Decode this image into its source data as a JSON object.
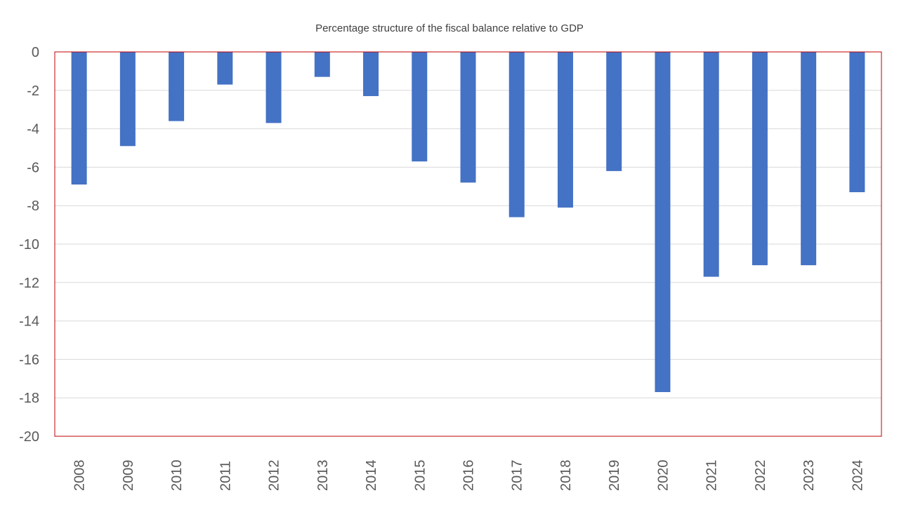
{
  "chart_data": {
    "type": "bar",
    "title": "Percentage structure of the fiscal balance relative to GDP",
    "xlabel": "",
    "ylabel": "",
    "categories": [
      "2008",
      "2009",
      "2010",
      "2011",
      "2012",
      "2013",
      "2014",
      "2015",
      "2016",
      "2017",
      "2018",
      "2019",
      "2020",
      "2021",
      "2022",
      "2023",
      "2024"
    ],
    "values": [
      -6.9,
      -4.9,
      -3.6,
      -1.7,
      -3.7,
      -1.3,
      -2.3,
      -5.7,
      -6.8,
      -8.6,
      -8.1,
      -6.2,
      -17.7,
      -11.7,
      -11.1,
      -11.1,
      -7.3
    ],
    "ylim": [
      -20,
      0
    ],
    "yticks": [
      "0",
      "-2",
      "-4",
      "-6",
      "-8",
      "-10",
      "-12",
      "-14",
      "-16",
      "-18",
      "-20"
    ],
    "grid": true,
    "legend": "none",
    "colors": {
      "bar": "#4472C4",
      "grid": "#D9D9D9",
      "plot_border": "#C00000",
      "text": "#595959"
    }
  }
}
